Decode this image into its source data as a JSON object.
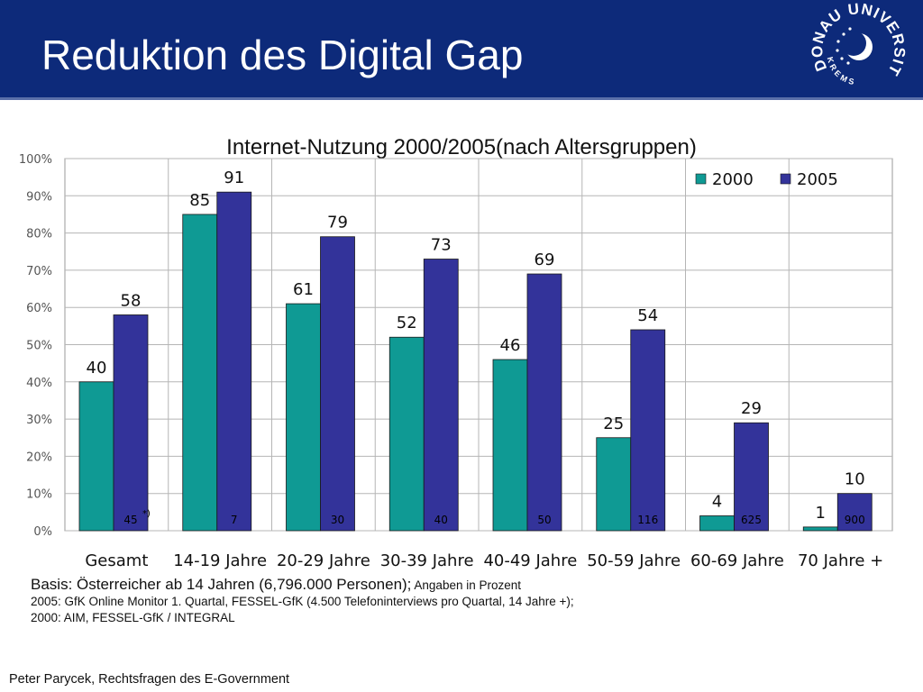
{
  "header": {
    "title": "Reduktion des Digital Gap",
    "logo_text_outer": "DONAU UNIVERSITÄT",
    "logo_text_inner": "KREMS"
  },
  "chart_data": {
    "type": "bar",
    "title": "Internet-Nutzung 2000/2005(nach Altersgruppen)",
    "xlabel": "",
    "ylabel": "",
    "ylim": [
      0,
      100
    ],
    "y_ticks": [
      "0%",
      "10%",
      "20%",
      "30%",
      "40%",
      "50%",
      "60%",
      "70%",
      "80%",
      "90%",
      "100%"
    ],
    "categories": [
      "Gesamt",
      "14-19 Jahre",
      "20-29 Jahre",
      "30-39 Jahre",
      "40-49 Jahre",
      "50-59 Jahre",
      "60-69 Jahre",
      "70 Jahre +"
    ],
    "series": [
      {
        "name": "2000",
        "color": "#0f9a94",
        "values": [
          40,
          85,
          61,
          52,
          46,
          25,
          4,
          1
        ]
      },
      {
        "name": "2005",
        "color": "#33339a",
        "values": [
          58,
          91,
          79,
          73,
          69,
          54,
          29,
          10
        ]
      }
    ],
    "growth_labels": [
      "45",
      "7",
      "30",
      "40",
      "50",
      "116",
      "625",
      "900"
    ],
    "growth_footnote_mark": "*)",
    "grid": true,
    "legend_position": "top-right"
  },
  "notes": {
    "basis_big": "Basis: Österreicher ab 14 Jahren (6,796.000 Personen);",
    "basis_small": " Angaben in Prozent",
    "line2": "2005: GfK Online Monitor 1. Quartal, FESSEL-GfK (4.500 Telefoninterviews pro Quartal, 14 Jahre +);",
    "line3": "2000: AIM, FESSEL-GfK / INTEGRAL"
  },
  "footer": {
    "author": "Peter Parycek, Rechtsfragen des E-Government"
  }
}
